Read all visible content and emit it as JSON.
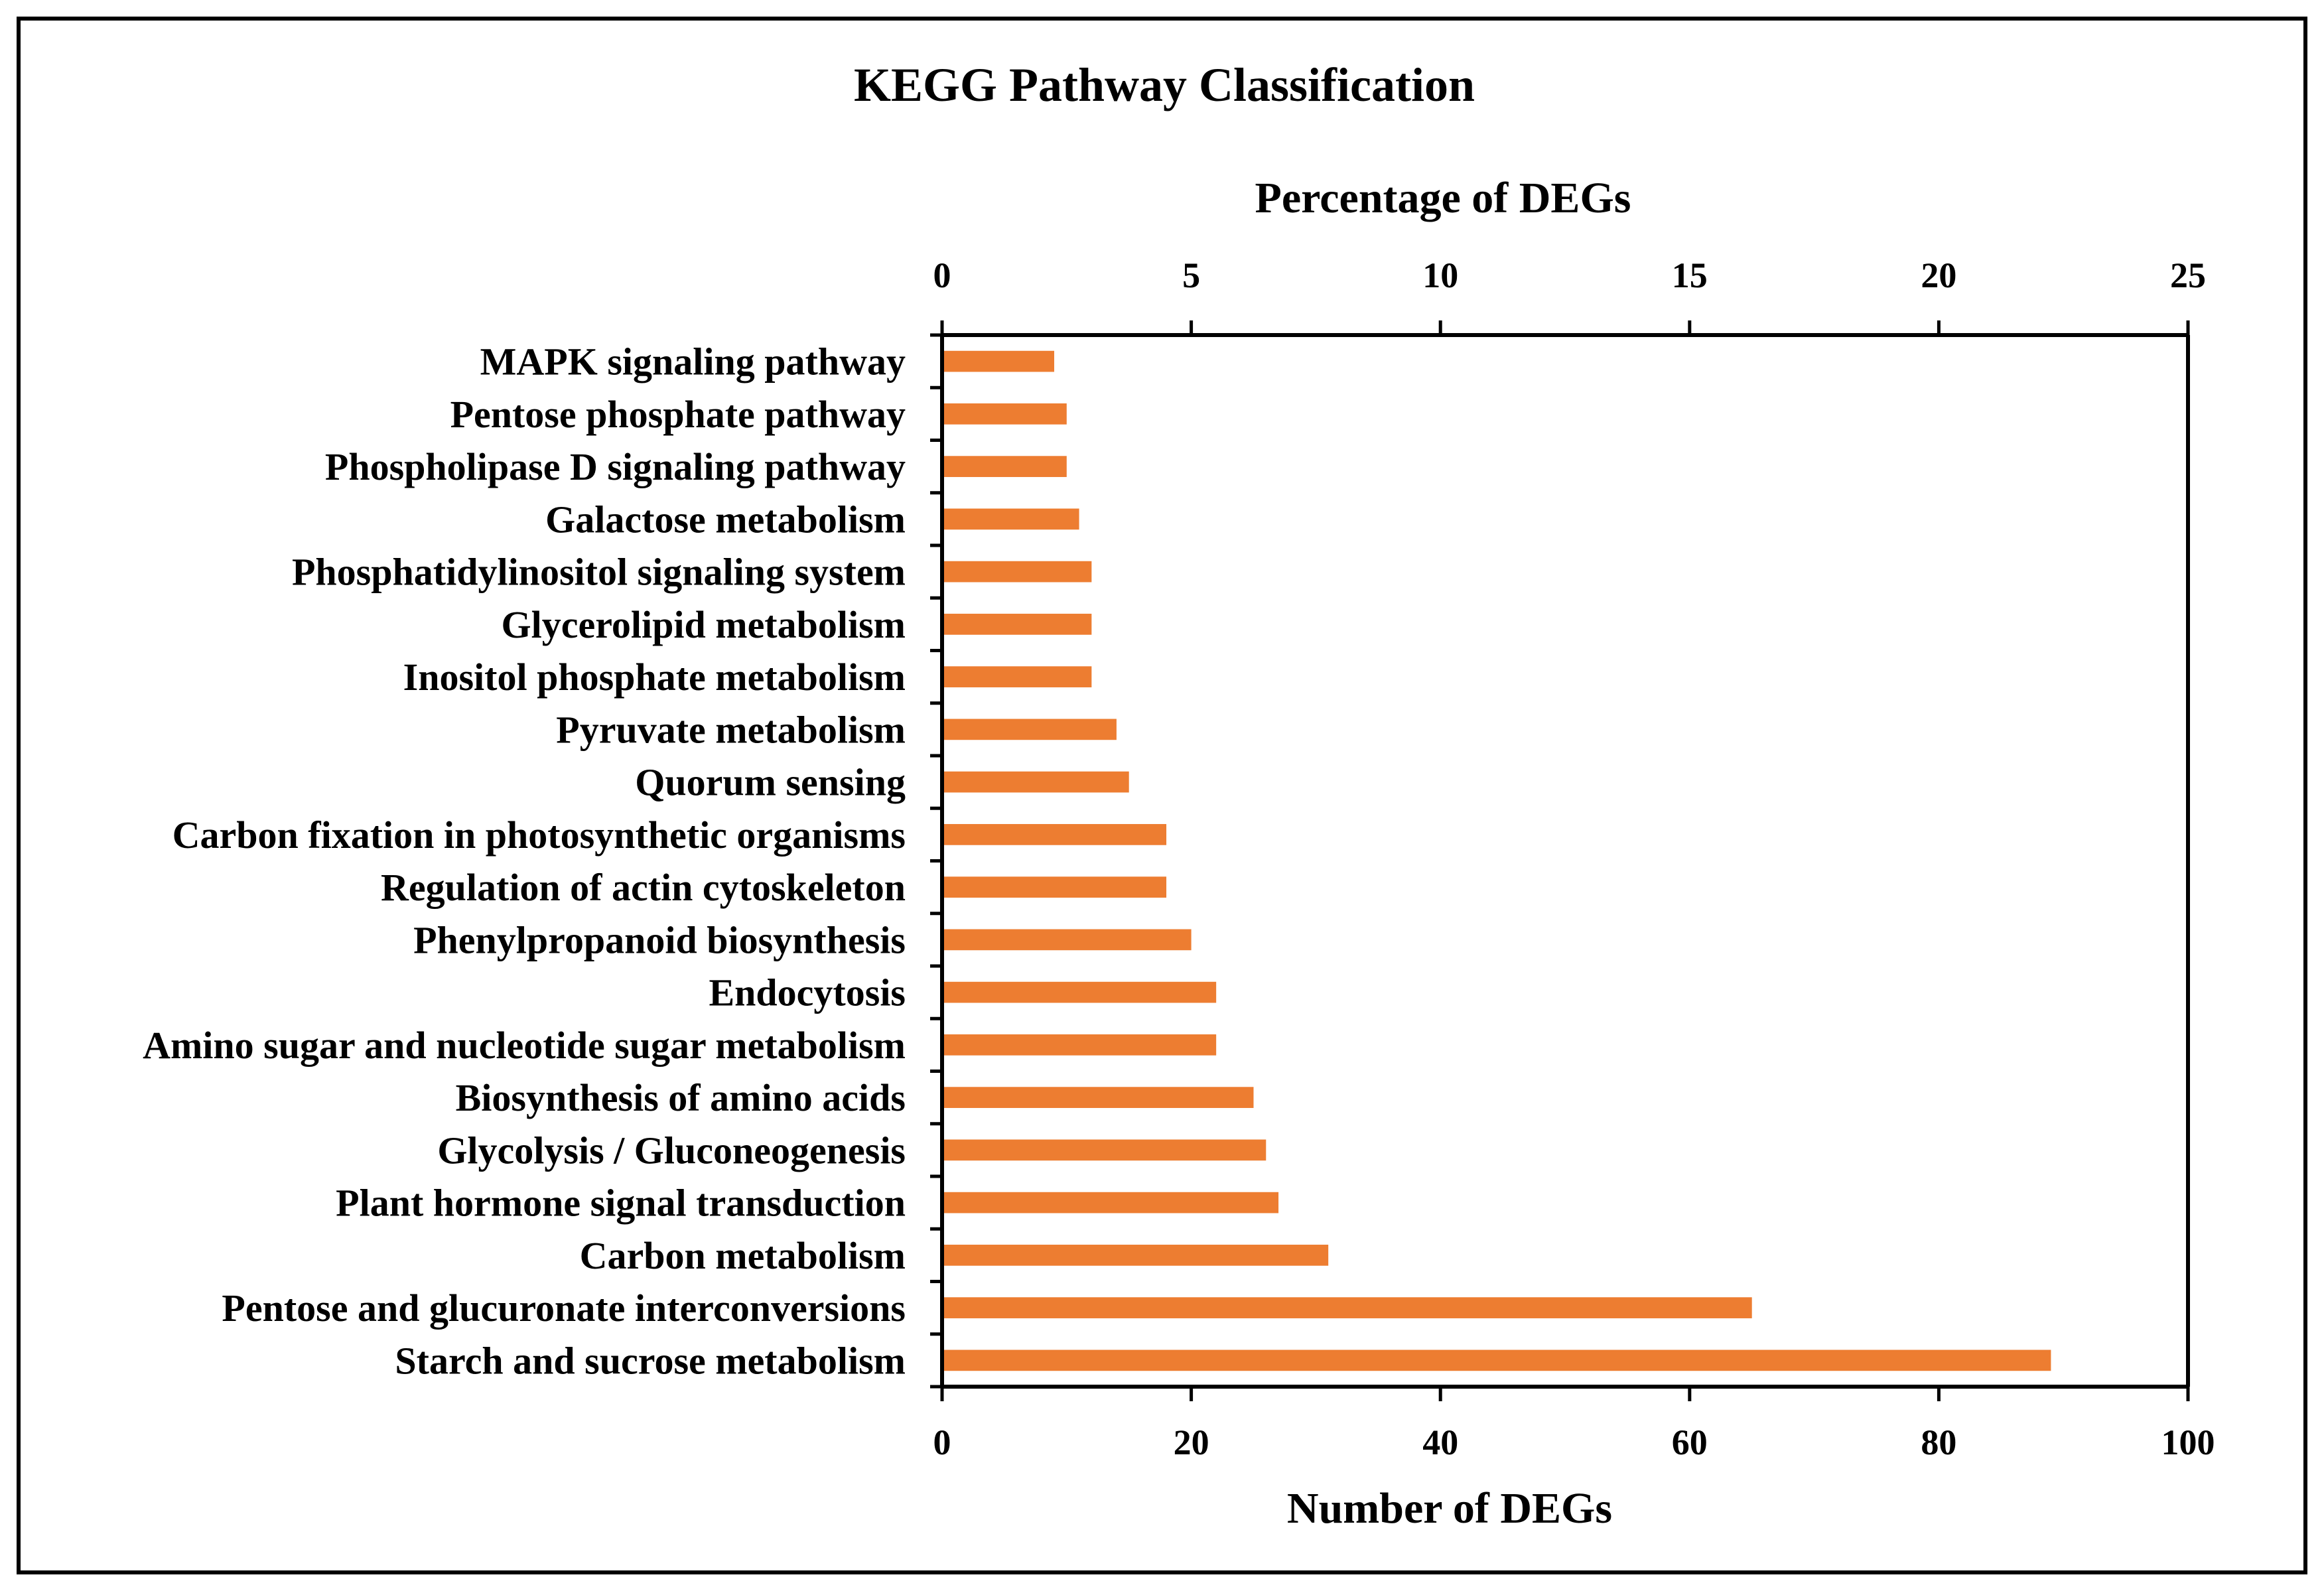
{
  "chart_data": {
    "type": "bar",
    "orientation": "horizontal",
    "title": "KEGG Pathway Classification",
    "top_axis": {
      "label": "Percentage of DEGs",
      "range": [
        0,
        25
      ],
      "ticks": [
        "0",
        "5",
        "10",
        "15",
        "20",
        "25"
      ]
    },
    "bottom_axis": {
      "label": "Number of DEGs",
      "range": [
        0,
        100
      ],
      "ticks": [
        "0",
        "20",
        "40",
        "60",
        "80",
        "100"
      ]
    },
    "categories": [
      "MAPK signaling pathway ",
      "Pentose phosphate pathway",
      "Phospholipase D signaling pathway",
      "Galactose metabolism",
      "Phosphatidylinositol signaling system",
      "Glycerolipid metabolism",
      "Inositol phosphate metabolism",
      "Pyruvate metabolism",
      "Quorum sensing",
      "Carbon fixation in photosynthetic organisms",
      "Regulation of actin cytoskeleton",
      "Phenylpropanoid biosynthesis",
      "Endocytosis",
      "Amino sugar and nucleotide sugar metabolism",
      "Biosynthesis of amino acids",
      "Glycolysis / Gluconeogenesis",
      "Plant hormone signal transduction",
      "Carbon metabolism",
      "Pentose and glucuronate interconversions",
      "Starch and sucrose metabolism"
    ],
    "values": [
      9,
      10,
      10,
      11,
      12,
      12,
      12,
      14,
      15,
      18,
      18,
      20,
      22,
      22,
      25,
      26,
      27,
      31,
      65,
      89
    ],
    "bar_color": "#ED7D31",
    "grid": false,
    "legend": "none"
  }
}
